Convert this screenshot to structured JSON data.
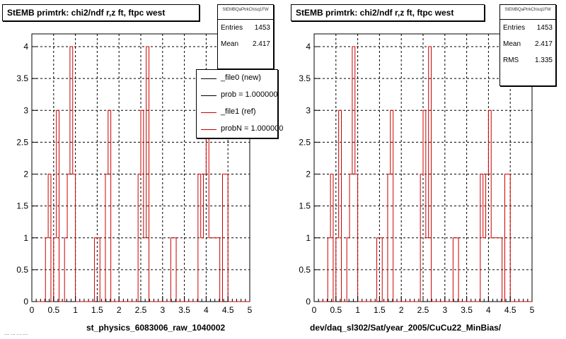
{
  "footer_text": "... ... ... ...",
  "chart_data": [
    {
      "type": "histogram",
      "title": "StEMB primtrk: chi2/ndf r,z ft, ftpc west",
      "xlabel": "st_physics_6083006_raw_1040002",
      "ylabel": "",
      "xlim": [
        0,
        5
      ],
      "ylim": [
        0,
        4.2
      ],
      "grid": true,
      "x_ticks": [
        "0",
        "0.5",
        "1",
        "1.5",
        "2",
        "2.5",
        "3",
        "3.5",
        "4",
        "4.5",
        "5"
      ],
      "y_ticks": [
        "0",
        "0.5",
        "1",
        "1.5",
        "2",
        "2.5",
        "3",
        "3.5",
        "4"
      ],
      "bin_width": 0.0625,
      "x_start": 0,
      "stats": {
        "name": "StEMBQaPtrkChisq1FW",
        "entries": "1453",
        "mean": "2.417"
      },
      "legend_position": "top-right",
      "legend": [
        {
          "label": "_file0 (new)",
          "color": "#000000"
        },
        {
          "label": "prob = 1.000000",
          "color": "#000000"
        },
        {
          "label": "_file1 (ref)",
          "color": "#cc0000"
        },
        {
          "label": "probN = 1.000000",
          "color": "#cc0000"
        }
      ],
      "series": [
        {
          "name": "_file1 (ref)",
          "color": "#cc0000",
          "values": [
            0,
            0,
            0,
            0,
            0,
            1,
            2,
            0,
            1,
            3,
            0,
            0,
            1,
            2,
            4,
            2,
            0,
            0,
            0,
            0,
            0,
            0,
            0,
            1,
            1,
            0,
            0,
            2,
            3,
            0,
            0,
            0,
            0,
            0,
            0,
            0,
            0,
            0,
            0,
            2,
            3,
            1,
            4,
            0,
            0,
            0,
            0,
            0,
            0,
            0,
            0,
            1,
            1,
            0,
            0,
            0,
            0,
            0,
            0,
            0,
            0,
            2,
            1,
            2,
            3,
            1,
            1,
            1,
            1,
            0,
            2,
            2,
            0,
            0,
            0,
            0,
            0,
            0,
            0,
            0
          ]
        }
      ]
    },
    {
      "type": "histogram",
      "title": "StEMB primtrk: chi2/ndf r,z ft, ftpc west",
      "xlabel": "dev/daq_sl302/Sat/year_2005/CuCu22_MinBias/",
      "ylabel": "",
      "xlim": [
        0,
        5
      ],
      "ylim": [
        0,
        4.2
      ],
      "grid": true,
      "x_ticks": [
        "0",
        "0.5",
        "1",
        "1.5",
        "2",
        "2.5",
        "3",
        "3.5",
        "4",
        "4.5",
        "5"
      ],
      "y_ticks": [
        "0",
        "0.5",
        "1",
        "1.5",
        "2",
        "2.5",
        "3",
        "3.5",
        "4"
      ],
      "bin_width": 0.0625,
      "x_start": 0,
      "stats": {
        "name": "StEMBQaPtrkChisq1FW",
        "entries": "1453",
        "mean": "2.417",
        "rms": "1.335"
      },
      "series": [
        {
          "name": "",
          "color": "#cc0000",
          "values": [
            0,
            0,
            0,
            0,
            0,
            1,
            2,
            0,
            1,
            3,
            0,
            0,
            1,
            2,
            4,
            2,
            0,
            0,
            0,
            0,
            0,
            0,
            0,
            1,
            1,
            0,
            0,
            2,
            3,
            0,
            0,
            0,
            0,
            0,
            0,
            0,
            0,
            0,
            0,
            2,
            3,
            1,
            4,
            0,
            0,
            0,
            0,
            0,
            0,
            0,
            0,
            1,
            1,
            0,
            0,
            0,
            0,
            0,
            0,
            0,
            0,
            2,
            1,
            2,
            3,
            1,
            1,
            1,
            1,
            0,
            2,
            2,
            0,
            0,
            0,
            0,
            0,
            0,
            0,
            0
          ]
        }
      ]
    }
  ]
}
